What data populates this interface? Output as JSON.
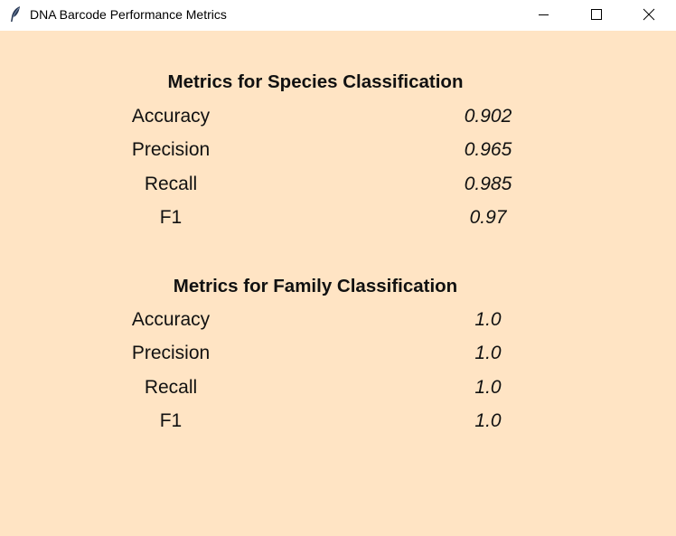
{
  "window": {
    "title": "DNA Barcode Performance Metrics",
    "background": "#ffe4c4",
    "icon": "feather-icon",
    "controls": [
      "minimize-icon",
      "maximize-icon",
      "close-icon"
    ]
  },
  "species": {
    "heading": "Metrics for Species Classification",
    "rows": [
      {
        "label": "Accuracy",
        "value": "0.902"
      },
      {
        "label": "Precision",
        "value": "0.965"
      },
      {
        "label": "Recall",
        "value": "0.985"
      },
      {
        "label": "F1",
        "value": "0.97"
      }
    ]
  },
  "family": {
    "heading": "Metrics for Family Classification",
    "rows": [
      {
        "label": "Accuracy",
        "value": "1.0"
      },
      {
        "label": "Precision",
        "value": "1.0"
      },
      {
        "label": "Recall",
        "value": "1.0"
      },
      {
        "label": "F1",
        "value": "1.0"
      }
    ]
  }
}
